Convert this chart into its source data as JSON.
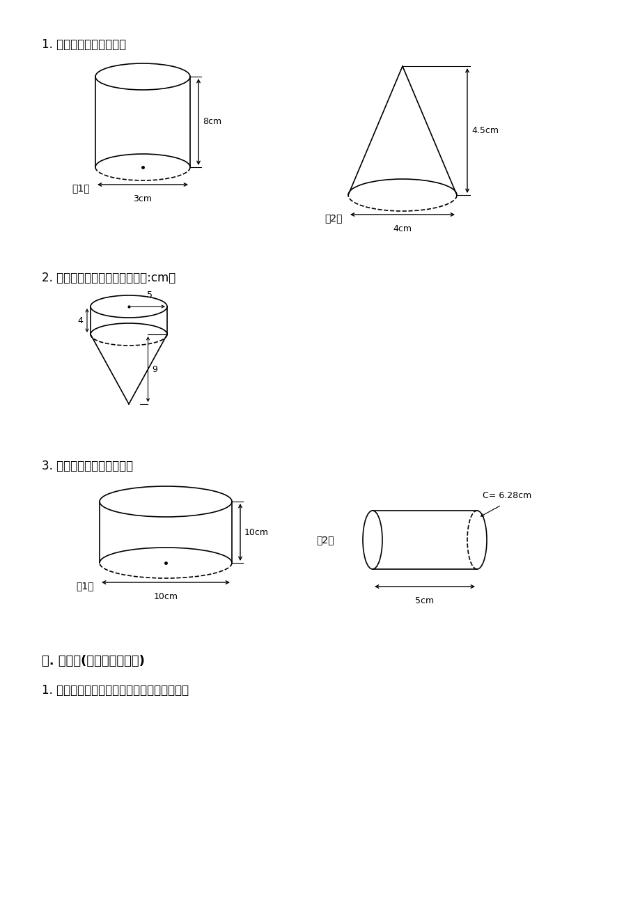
{
  "bg_color": "#ffffff",
  "text_color": "#000000",
  "section1_title": "1. 计算下列图形的体积。",
  "section2_title": "2. 计算下面图形的体积。（单位:cm）",
  "section3_title": "3. 计算下面圆柱的表面积。",
  "section4_title": "五. 作图题(共２题，共９分)",
  "section5_title": "1. 从左到右在括号里填数。（填整数或小数）",
  "label1": "（1）",
  "label2": "（2）",
  "dim_8cm": "8cm",
  "dim_3cm": "3cm",
  "dim_45cm": "4.5cm",
  "dim_4cm": "4cm",
  "dim_5": "5",
  "dim_4": "4",
  "dim_9": "9",
  "dim_10cm_h": "10cm",
  "dim_10cm_d": "10cm",
  "dim_c628": "C= 6.28cm",
  "dim_5cm": "5cm"
}
